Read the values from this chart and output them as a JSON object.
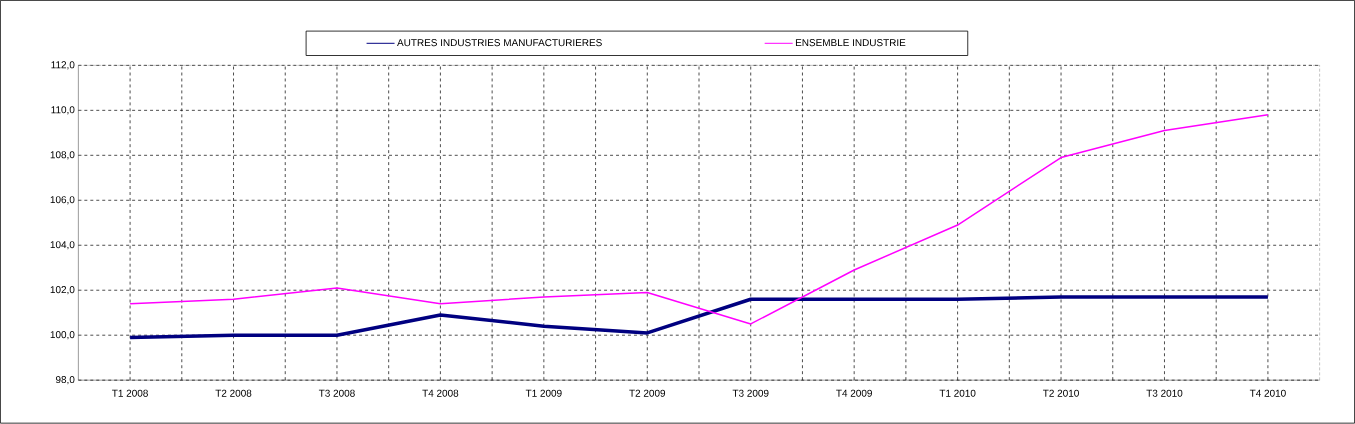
{
  "chart_data": {
    "type": "line",
    "categories": [
      "T1 2008",
      "T2 2008",
      "T3 2008",
      "T4 2008",
      "T1 2009",
      "T2 2009",
      "T3 2009",
      "T4 2009",
      "T1 2010",
      "T2 2010",
      "T3 2010",
      "T4 2010"
    ],
    "series": [
      {
        "name": "AUTRES INDUSTRIES MANUFACTURIERES",
        "color": "#000080",
        "values": [
          99.9,
          100.0,
          100.0,
          100.9,
          100.4,
          100.1,
          101.6,
          101.6,
          101.6,
          101.7,
          101.7,
          101.7
        ]
      },
      {
        "name": "ENSEMBLE INDUSTRIE",
        "color": "#ff00ff",
        "values": [
          101.4,
          101.6,
          102.1,
          101.4,
          101.7,
          101.9,
          100.5,
          102.9,
          104.9,
          107.9,
          109.1,
          109.8
        ]
      }
    ],
    "ylim": [
      98,
      112
    ],
    "yticks": [
      {
        "value": 98,
        "label": "98,0"
      },
      {
        "value": 100,
        "label": "100,0"
      },
      {
        "value": 102,
        "label": "102,0"
      },
      {
        "value": 104,
        "label": "104,0"
      },
      {
        "value": 106,
        "label": "106,0"
      },
      {
        "value": 108,
        "label": "108,0"
      },
      {
        "value": 110,
        "label": "110,0"
      },
      {
        "value": 112,
        "label": "112,0"
      }
    ],
    "grid": true,
    "legend": "top",
    "marker": "none",
    "line_style": "solid"
  }
}
